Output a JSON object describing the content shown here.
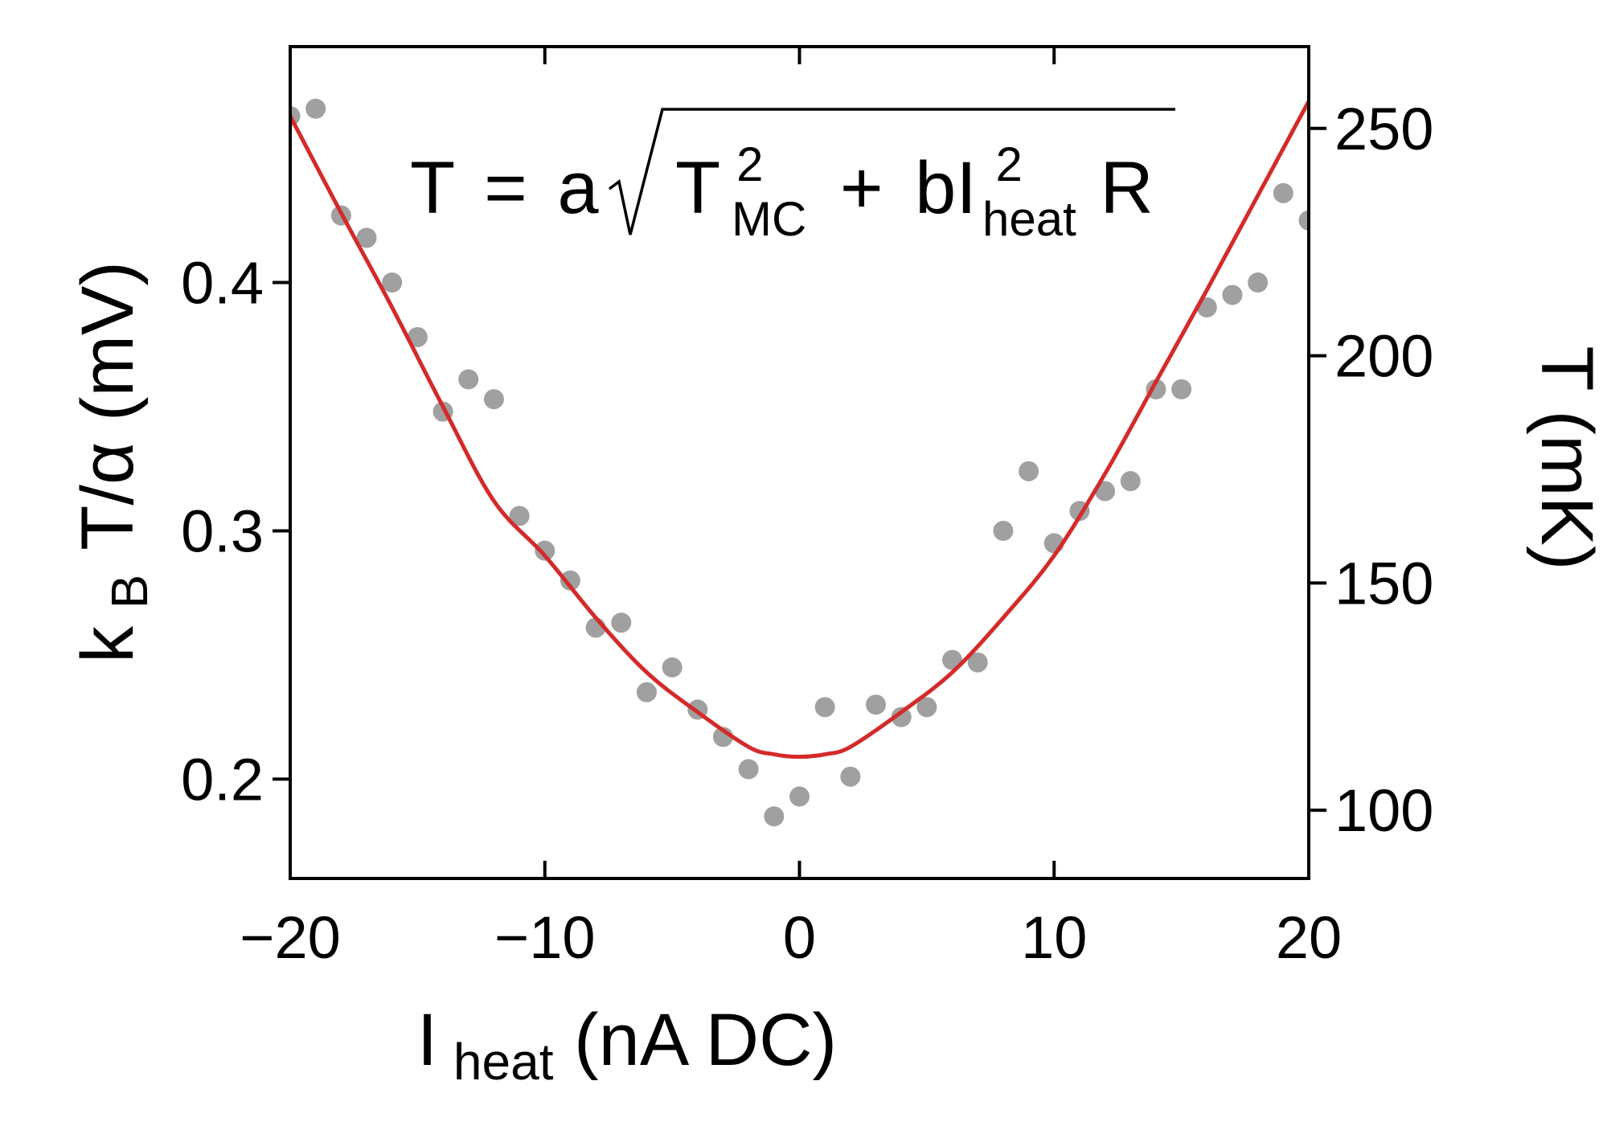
{
  "chart_data": {
    "type": "scatter",
    "xlabel": {
      "main": "I",
      "sub": "heat",
      "rest": " (nA DC)"
    },
    "ylabel": {
      "main": "k",
      "sub": "B",
      "rest": "T/α (mV)"
    },
    "y2label": "T (mK)",
    "xlim": [
      -20,
      20
    ],
    "ylim": [
      0.16,
      0.495
    ],
    "y2lim": [
      85,
      268
    ],
    "x_ticks": [
      -20,
      -10,
      0,
      10,
      20
    ],
    "x_tick_labels": [
      "−20",
      "−10",
      "0",
      "10",
      "20"
    ],
    "y_ticks": [
      0.2,
      0.3,
      0.4
    ],
    "y_tick_labels": [
      "0.2",
      "0.3",
      "0.4"
    ],
    "y2_ticks": [
      100,
      150,
      200,
      250
    ],
    "y2_tick_labels": [
      "100",
      "150",
      "200",
      "250"
    ],
    "formula": {
      "lhs": "T",
      "eq": "=",
      "a": "a",
      "t": "T",
      "t_sup": "2",
      "t_sub": "MC",
      "plus": "+",
      "b": "bI",
      "i_sup": "2",
      "i_sub": "heat",
      "r": "R"
    },
    "series": [
      {
        "kind": "points",
        "color": "#a0a0a0",
        "x": [
          -20,
          -19,
          -18,
          -17,
          -16,
          -15,
          -14,
          -13,
          -12,
          -11,
          -10,
          -9,
          -8,
          -7,
          -6,
          -5,
          -4,
          -3,
          -2,
          -1,
          0,
          1,
          2,
          3,
          4,
          5,
          6,
          7,
          8,
          9,
          10,
          11,
          12,
          13,
          14,
          15,
          16,
          17,
          18,
          19,
          20
        ],
        "y": [
          0.467,
          0.47,
          0.427,
          0.418,
          0.4,
          0.378,
          0.348,
          0.361,
          0.353,
          0.306,
          0.292,
          0.28,
          0.261,
          0.263,
          0.235,
          0.245,
          0.228,
          0.217,
          0.204,
          0.185,
          0.193,
          0.229,
          0.201,
          0.23,
          0.225,
          0.229,
          0.248,
          0.247,
          0.3,
          0.324,
          0.295,
          0.308,
          0.316,
          0.32,
          0.357,
          0.357,
          0.39,
          0.395,
          0.4,
          0.436,
          0.425
        ]
      },
      {
        "kind": "fit-line",
        "color": "#d42a2a",
        "x": [
          -20,
          -18,
          -16,
          -14,
          -12,
          -10,
          -8,
          -6,
          -4,
          -2,
          -1,
          0,
          1,
          2,
          4,
          6,
          8,
          10,
          12,
          14,
          16,
          18,
          20
        ],
        "y": [
          0.467,
          0.428,
          0.39,
          0.35,
          0.312,
          0.29,
          0.265,
          0.243,
          0.227,
          0.213,
          0.21,
          0.209,
          0.21,
          0.213,
          0.227,
          0.243,
          0.265,
          0.29,
          0.323,
          0.36,
          0.397,
          0.435,
          0.473
        ]
      }
    ]
  }
}
